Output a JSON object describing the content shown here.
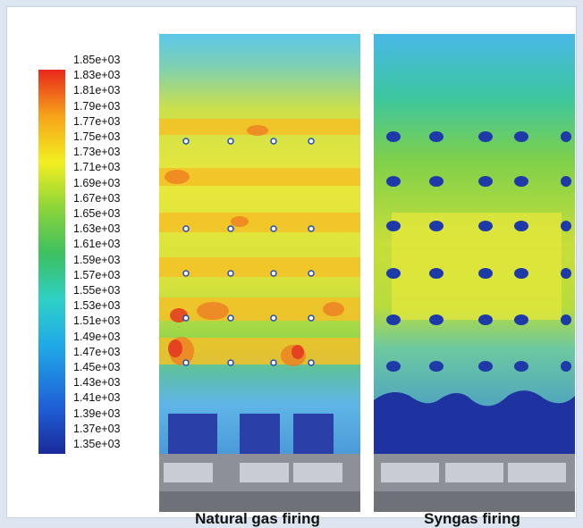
{
  "colorbar": {
    "tick_labels": [
      "1.85e+03",
      "1.83e+03",
      "1.81e+03",
      "1.79e+03",
      "1.77e+03",
      "1.75e+03",
      "1.73e+03",
      "1.71e+03",
      "1.69e+03",
      "1.67e+03",
      "1.65e+03",
      "1.63e+03",
      "1.61e+03",
      "1.59e+03",
      "1.57e+03",
      "1.55e+03",
      "1.53e+03",
      "1.51e+03",
      "1.49e+03",
      "1.47e+03",
      "1.45e+03",
      "1.43e+03",
      "1.41e+03",
      "1.39e+03",
      "1.37e+03",
      "1.35e+03"
    ],
    "colors": [
      "#1a2a9a",
      "#1f5fd6",
      "#20a8e8",
      "#2fd0c8",
      "#3cc060",
      "#8cd43a",
      "#f2ef20",
      "#f6a21a",
      "#e8281a"
    ]
  },
  "panels": {
    "left_caption": "Natural gas firing",
    "right_caption": "Syngas firing"
  }
}
